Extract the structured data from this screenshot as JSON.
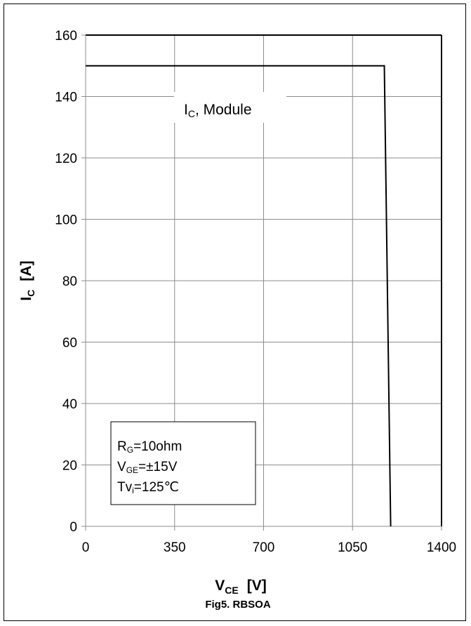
{
  "chart_data": {
    "type": "line",
    "title": "Fig5. RBSOA",
    "xlabel": {
      "main": "V",
      "sub": "CE",
      "unit": "[V]"
    },
    "ylabel": {
      "main": "I",
      "sub": "C",
      "unit": "[A]"
    },
    "xlim": [
      0,
      1400
    ],
    "ylim": [
      0,
      160
    ],
    "x_ticks": [
      0,
      350,
      700,
      1050,
      1400
    ],
    "y_ticks": [
      0,
      20,
      40,
      60,
      80,
      100,
      120,
      140,
      160
    ],
    "grid": true,
    "series": [
      {
        "name": "",
        "color": "#000000",
        "points": [
          [
            0,
            150
          ],
          [
            1175,
            150
          ],
          [
            1200,
            0
          ]
        ]
      }
    ],
    "annotations": {
      "curve_label": {
        "main": "I",
        "sub": "C",
        "rest": ", Module"
      },
      "conditions": [
        {
          "main": "R",
          "sub": "G",
          "rest": "=10ohm"
        },
        {
          "main": "V",
          "sub": "GE",
          "rest": "=±15V"
        },
        {
          "main": "Tv",
          "sub": "i",
          "rest": "=125℃"
        }
      ]
    }
  }
}
